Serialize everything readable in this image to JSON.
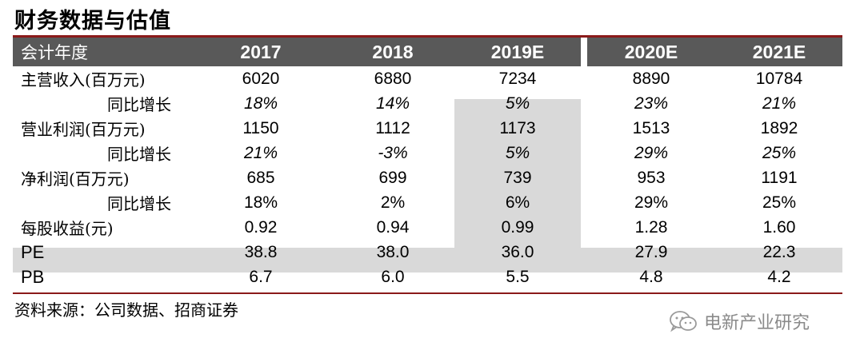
{
  "title": "财务数据与估值",
  "columns": [
    "会计年度",
    "2017",
    "2018",
    "2019E",
    "2020E",
    "2021E"
  ],
  "rows": [
    {
      "label": "主营收入(百万元)",
      "values": [
        "6020",
        "6880",
        "7234",
        "8890",
        "10784"
      ]
    },
    {
      "label": "同比增长",
      "values": [
        "18%",
        "14%",
        "5%",
        "23%",
        "21%"
      ]
    },
    {
      "label": "营业利润(百万元)",
      "values": [
        "1150",
        "1112",
        "1173",
        "1513",
        "1892"
      ]
    },
    {
      "label": "同比增长",
      "values": [
        "21%",
        "-3%",
        "5%",
        "29%",
        "25%"
      ]
    },
    {
      "label": "净利润(百万元)",
      "values": [
        "685",
        "699",
        "739",
        "953",
        "1191"
      ]
    },
    {
      "label": "同比增长",
      "values": [
        "18%",
        "2%",
        "6%",
        "29%",
        "25%"
      ]
    },
    {
      "label": "每股收益(元)",
      "values": [
        "0.92",
        "0.94",
        "0.99",
        "1.28",
        "1.60"
      ]
    },
    {
      "label": "PE",
      "values": [
        "38.8",
        "38.0",
        "36.0",
        "27.9",
        "22.3"
      ]
    },
    {
      "label": "PB",
      "values": [
        "6.7",
        "6.0",
        "5.5",
        "4.8",
        "4.2"
      ]
    }
  ],
  "source": "资料来源：公司数据、招商证券",
  "watermark": "电新产业研究",
  "watermark_icon": "wechat-icon",
  "colors": {
    "header_bg": "#595959",
    "accent_line": "#8b1a1a",
    "shade": "#d9d9d9",
    "watermark": "#8a8a8a"
  }
}
